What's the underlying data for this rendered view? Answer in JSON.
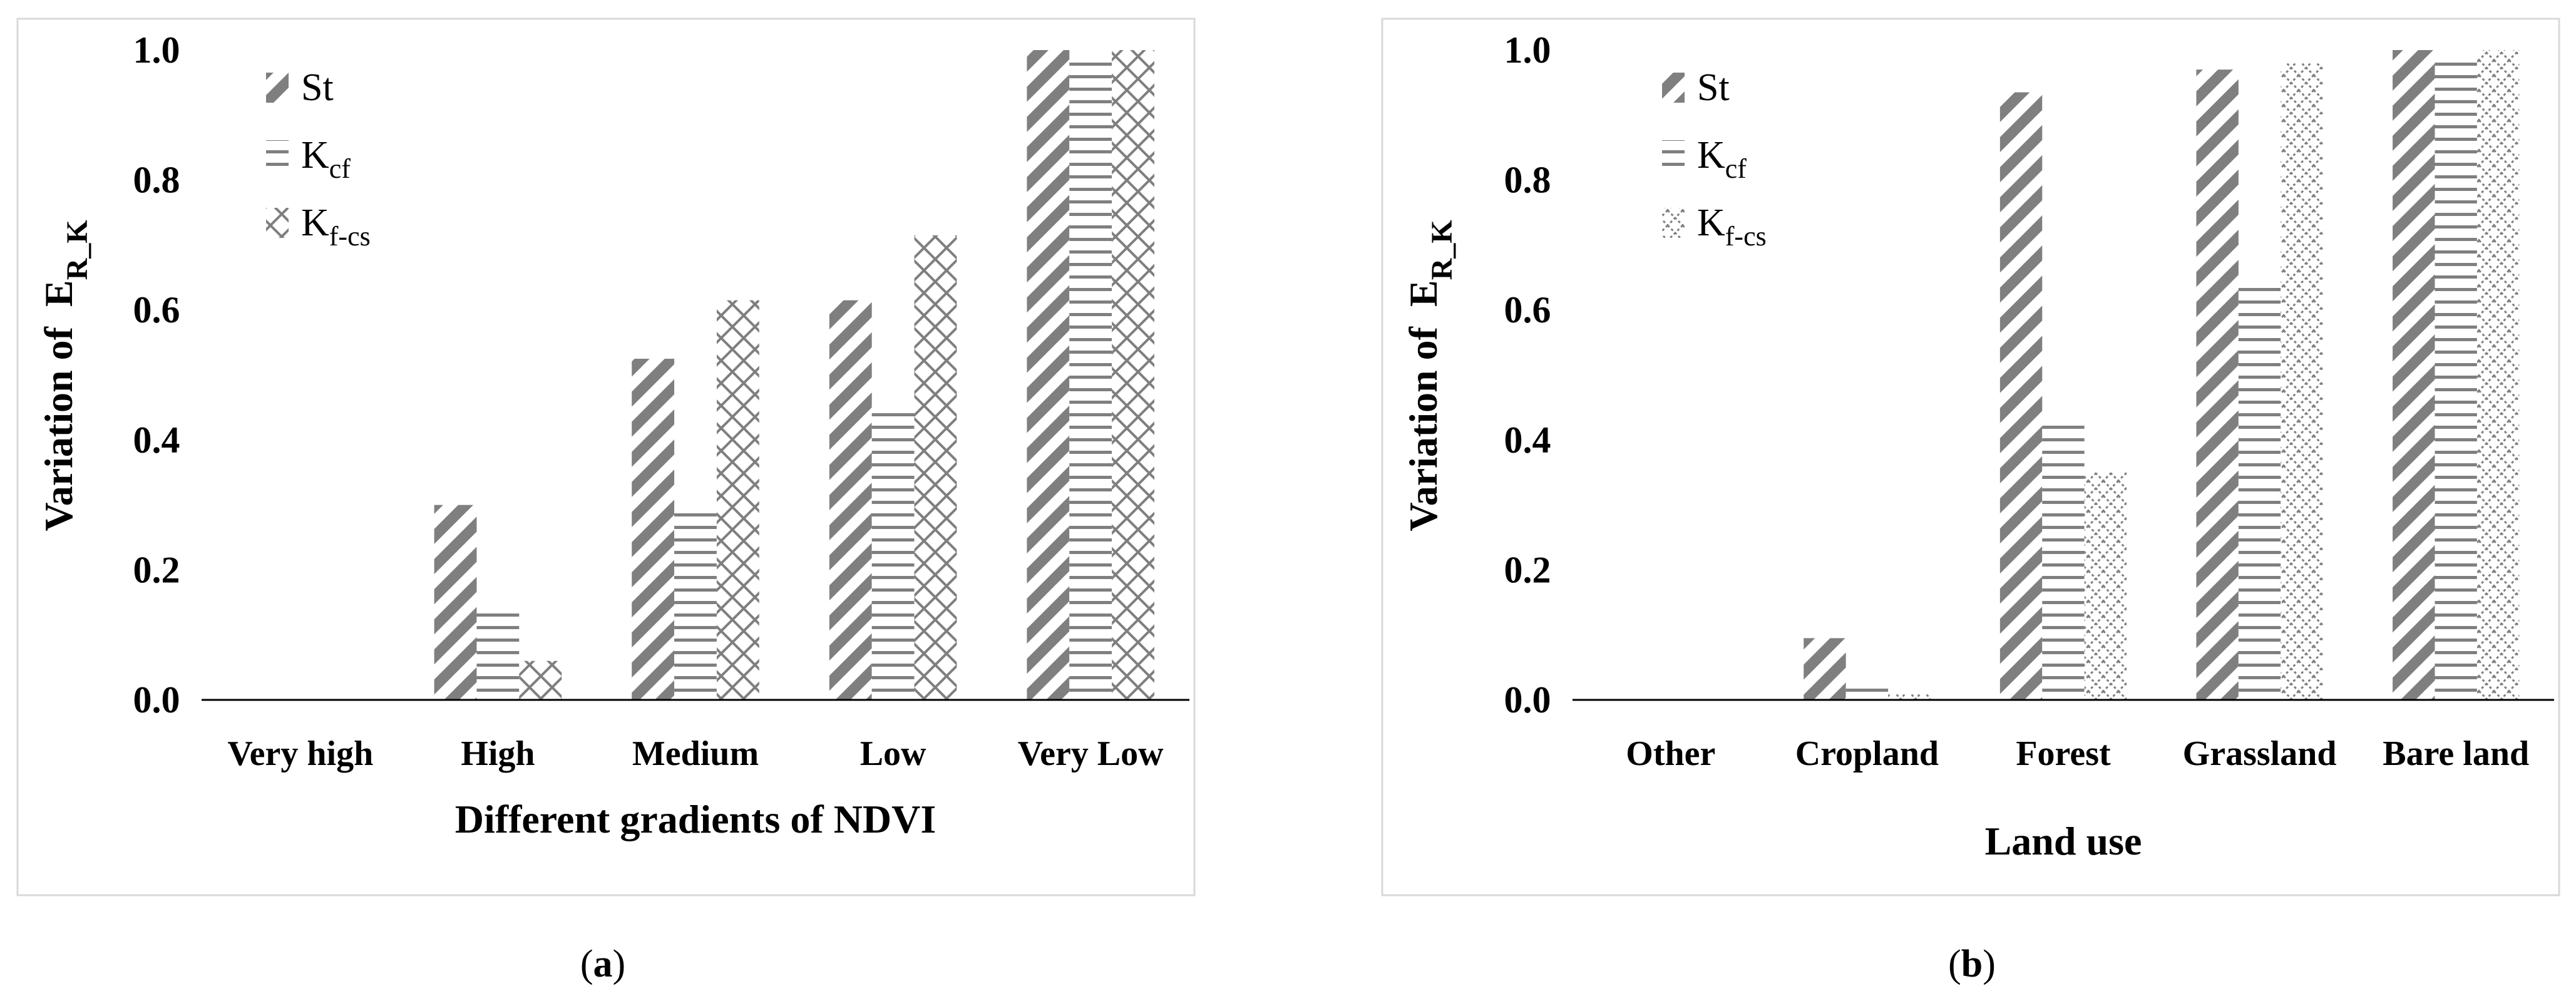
{
  "colors": {
    "bar": "#7f7f7f",
    "background": "#ffffff",
    "axis": "#000000",
    "border": "#d9d9d9"
  },
  "chart_data": [
    {
      "type": "bar",
      "panel_label_open": "(",
      "panel_label_letter": "a",
      "panel_label_close": ")",
      "ylabel_prefix": "Variation of",
      "ylabel_symbol": "E",
      "ylabel_subscript": "R_K",
      "xlabel": "Different gradients of NDVI",
      "ylim": [
        0,
        1.0
      ],
      "yticks": [
        "0.0",
        "0.2",
        "0.4",
        "0.6",
        "0.8",
        "1.0"
      ],
      "categories": [
        "Very high",
        "High",
        "Medium",
        "Low",
        "Very Low"
      ],
      "series": [
        {
          "name": "St",
          "sym": "St",
          "sub": "",
          "pattern": "diagonal",
          "values": [
            0,
            0.3,
            0.525,
            0.615,
            1.0
          ]
        },
        {
          "name": "Kcf",
          "sym": "K",
          "sub": "cf",
          "pattern": "horizontal",
          "values": [
            0,
            0.135,
            0.295,
            0.455,
            0.985
          ]
        },
        {
          "name": "Kf-cs",
          "sym": "K",
          "sub": "f-cs",
          "pattern": "crosshatch",
          "values": [
            0,
            0.06,
            0.615,
            0.715,
            1.0
          ]
        }
      ],
      "legend_position": "top-left"
    },
    {
      "type": "bar",
      "panel_label_open": "(",
      "panel_label_letter": "b",
      "panel_label_close": ")",
      "ylabel_prefix": "Variation of",
      "ylabel_symbol": "E",
      "ylabel_subscript": "R_K",
      "xlabel": "Land use",
      "ylim": [
        0,
        1.0
      ],
      "yticks": [
        "0.0",
        "0.2",
        "0.4",
        "0.6",
        "0.8",
        "1.0"
      ],
      "categories": [
        "Other",
        "Cropland",
        "Forest",
        "Grassland",
        "Bare land"
      ],
      "series": [
        {
          "name": "St",
          "sym": "St",
          "sub": "",
          "pattern": "diagonal",
          "values": [
            0,
            0.095,
            0.935,
            0.97,
            1.0
          ]
        },
        {
          "name": "Kcf",
          "sym": "K",
          "sub": "cf",
          "pattern": "horizontal",
          "values": [
            0,
            0.02,
            0.43,
            0.64,
            0.99
          ]
        },
        {
          "name": "Kf-cs",
          "sym": "K",
          "sub": "f-cs",
          "pattern": "dots",
          "values": [
            0,
            0.01,
            0.35,
            0.98,
            1.0
          ]
        }
      ],
      "legend_position": "top-left"
    }
  ]
}
